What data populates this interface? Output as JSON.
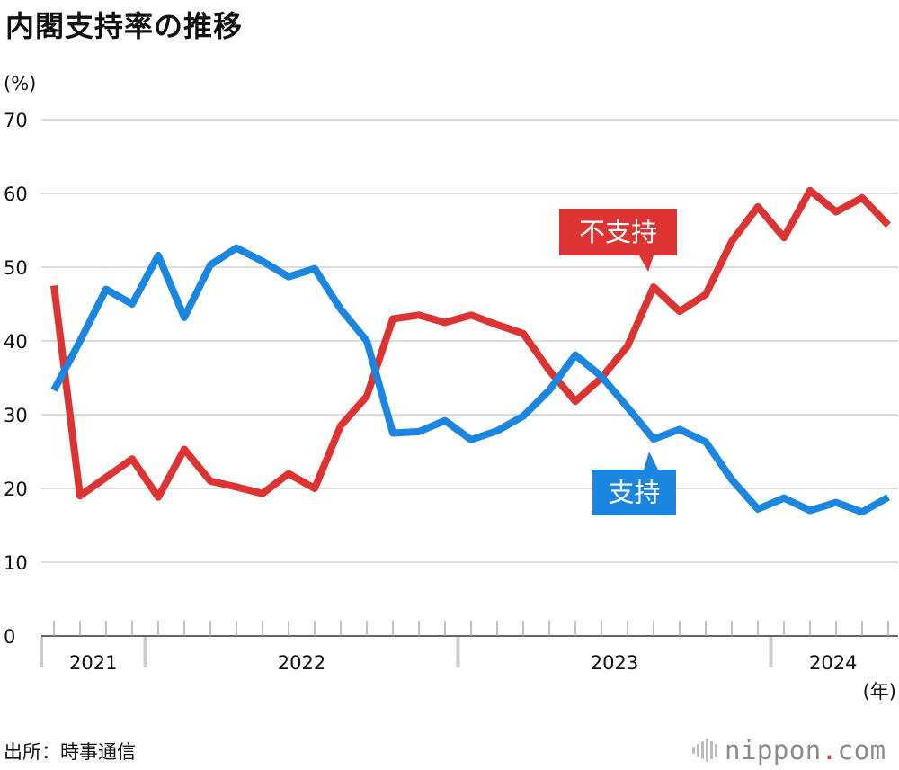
{
  "title": "内閣支持率の推移",
  "source": "出所：時事通信",
  "logo": {
    "name": "nippon",
    "dot": ".",
    "tld": "com"
  },
  "colors": {
    "support": "#1a86e0",
    "nonsupport": "#dd3333",
    "grid": "#c8c8c8",
    "axis": "#333333",
    "year_band": "#cccccc"
  },
  "chart_data": {
    "type": "line",
    "title": "内閣支持率の推移",
    "ylabel": "(%)",
    "xlabel": "(年)",
    "ylim": [
      0,
      70
    ],
    "yticks": [
      0,
      10,
      20,
      30,
      40,
      50,
      60,
      70
    ],
    "grid": true,
    "years": [
      {
        "label": "2021",
        "start": 0,
        "end": 3.5
      },
      {
        "label": "2022",
        "start": 3.5,
        "end": 15.5
      },
      {
        "label": "2023",
        "start": 15.5,
        "end": 27.5
      },
      {
        "label": "2024",
        "start": 27.5,
        "end": 32
      }
    ],
    "series": [
      {
        "name": "不支持",
        "key": "nonsupport",
        "values": [
          47.5,
          19,
          21.5,
          24,
          18.8,
          25.3,
          21,
          20.2,
          19.3,
          22,
          20,
          28.5,
          32.5,
          43,
          43.5,
          42.5,
          43.5,
          42.2,
          41,
          36,
          31.8,
          35,
          39.3,
          47.3,
          44,
          46.3,
          53.5,
          58.2,
          54,
          60.4,
          57.5,
          59.4,
          55.7
        ]
      },
      {
        "name": "支持",
        "key": "support",
        "values": [
          33.3,
          40,
          47,
          45,
          51.6,
          43.2,
          50.3,
          52.6,
          50.8,
          48.7,
          49.8,
          44.3,
          40,
          27.5,
          27.7,
          29.2,
          26.6,
          27.8,
          29.8,
          33.3,
          38.1,
          35.2,
          31,
          26.7,
          28,
          26.3,
          21.2,
          17.2,
          18.7,
          17,
          18.1,
          16.8,
          18.8
        ]
      }
    ],
    "annotations": [
      {
        "text": "不支持",
        "series": "nonsupport"
      },
      {
        "text": "支持",
        "series": "support"
      }
    ]
  }
}
